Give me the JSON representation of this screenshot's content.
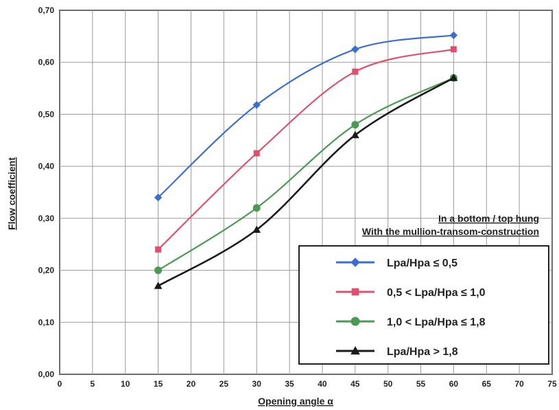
{
  "chart_data": {
    "type": "line",
    "xlabel": "Opening angle α",
    "ylabel": "Flow coefficient",
    "xlim": [
      0,
      75
    ],
    "ylim": [
      0,
      0.7
    ],
    "x_ticks": [
      "0",
      "5",
      "10",
      "15",
      "20",
      "25",
      "30",
      "35",
      "40",
      "45",
      "50",
      "55",
      "60",
      "65",
      "70",
      "75"
    ],
    "y_ticks": [
      "0,00",
      "0,10",
      "0,20",
      "0,30",
      "0,40",
      "0,50",
      "0,60",
      "0,70"
    ],
    "grid": true,
    "annotation": [
      "In a bottom / top hung",
      "With the mullion-transom-construction"
    ],
    "legend_position": "bottom-right",
    "x": [
      15,
      30,
      45,
      60
    ],
    "series": [
      {
        "name": "Lpa/Hpa ≤ 0,5",
        "values": [
          0.34,
          0.518,
          0.625,
          0.652
        ],
        "color": "#3a6fd0",
        "marker": "diamond"
      },
      {
        "name": "0,5 < Lpa/Hpa ≤ 1,0",
        "values": [
          0.24,
          0.425,
          0.582,
          0.625
        ],
        "color": "#e0506e",
        "marker": "square"
      },
      {
        "name": "1,0 < Lpa/Hpa ≤ 1,8",
        "values": [
          0.2,
          0.32,
          0.48,
          0.57
        ],
        "color": "#4a9a54",
        "marker": "circle"
      },
      {
        "name": "Lpa/Hpa > 1,8",
        "values": [
          0.17,
          0.278,
          0.46,
          0.57
        ],
        "color": "#1a1a1a",
        "marker": "triangle"
      }
    ]
  }
}
